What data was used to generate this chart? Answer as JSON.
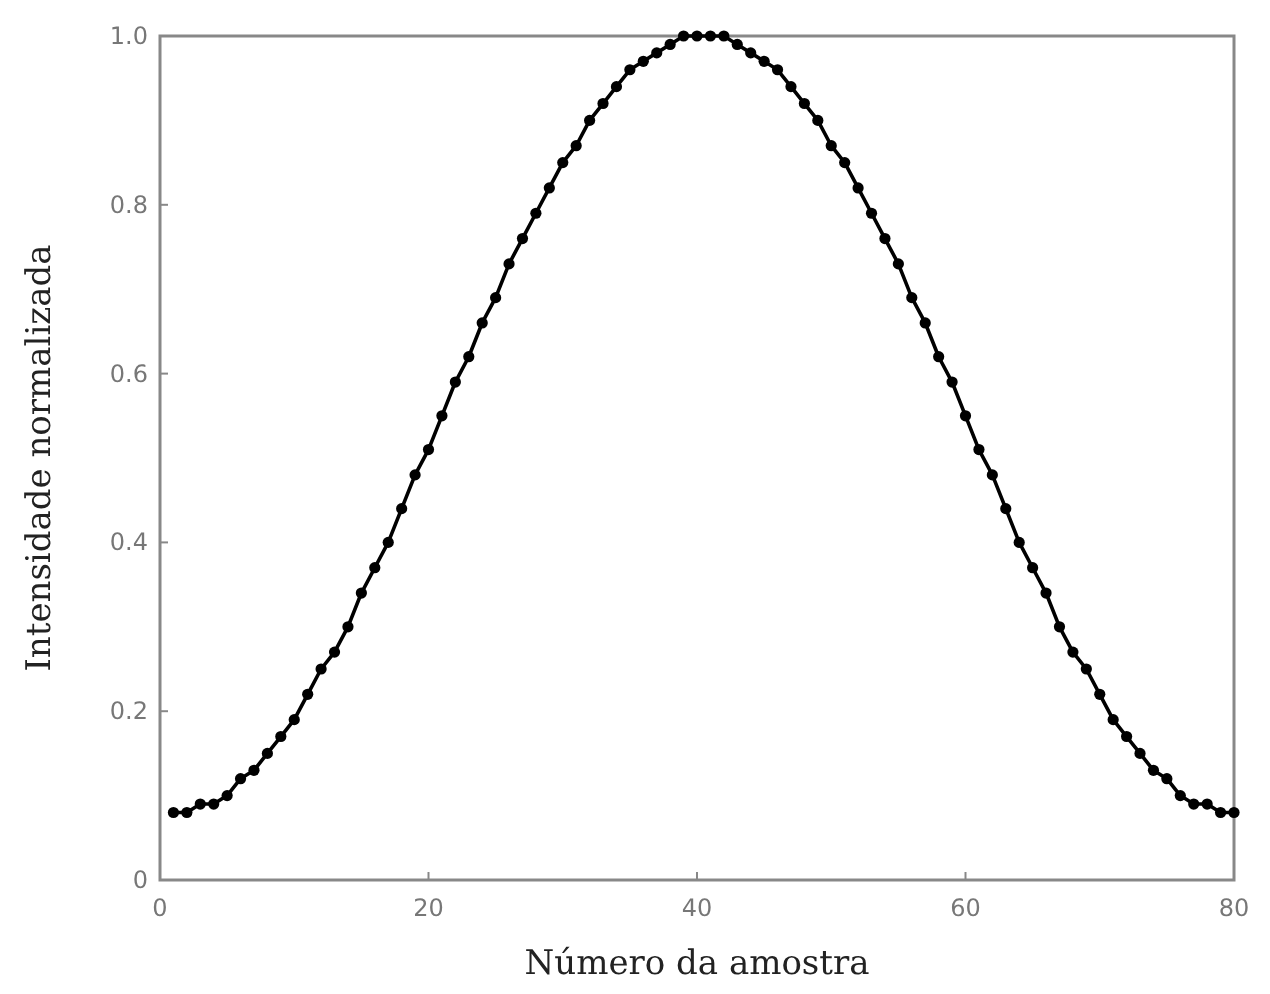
{
  "chart_data": {
    "type": "line",
    "xlabel": "Número da amostra",
    "ylabel": "Intensidade normalizada",
    "x": [
      1,
      2,
      3,
      4,
      5,
      6,
      7,
      8,
      9,
      10,
      11,
      12,
      13,
      14,
      15,
      16,
      17,
      18,
      19,
      20,
      21,
      22,
      23,
      24,
      25,
      26,
      27,
      28,
      29,
      30,
      31,
      32,
      33,
      34,
      35,
      36,
      37,
      38,
      39,
      40,
      41,
      42,
      43,
      44,
      45,
      46,
      47,
      48,
      49,
      50,
      51,
      52,
      53,
      54,
      55,
      56,
      57,
      58,
      59,
      60,
      61,
      62,
      63,
      64,
      65,
      66,
      67,
      68,
      69,
      70,
      71,
      72,
      73,
      74,
      75,
      76,
      77,
      78,
      79,
      80
    ],
    "series": [
      {
        "color": "#000000",
        "values": [
          0.08,
          0.08,
          0.09,
          0.09,
          0.1,
          0.12,
          0.13,
          0.15,
          0.17,
          0.19,
          0.22,
          0.25,
          0.27,
          0.3,
          0.34,
          0.37,
          0.4,
          0.44,
          0.48,
          0.51,
          0.55,
          0.59,
          0.62,
          0.66,
          0.69,
          0.73,
          0.76,
          0.79,
          0.82,
          0.85,
          0.87,
          0.9,
          0.92,
          0.94,
          0.96,
          0.97,
          0.98,
          0.99,
          1.0,
          1.0,
          1.0,
          1.0,
          0.99,
          0.98,
          0.97,
          0.96,
          0.94,
          0.92,
          0.9,
          0.87,
          0.85,
          0.82,
          0.79,
          0.76,
          0.73,
          0.69,
          0.66,
          0.62,
          0.59,
          0.55,
          0.51,
          0.48,
          0.44,
          0.4,
          0.37,
          0.34,
          0.3,
          0.27,
          0.25,
          0.22,
          0.19,
          0.17,
          0.15,
          0.13,
          0.12,
          0.1,
          0.09,
          0.09,
          0.08,
          0.08
        ]
      }
    ],
    "xlim": [
      0,
      80
    ],
    "xticks": [
      0,
      20,
      40,
      60,
      80
    ],
    "ylim": [
      0,
      1
    ],
    "yticks": [
      0,
      0.2,
      0.4,
      0.6,
      0.8,
      {
        "value": 1,
        "label": "1.0"
      }
    ],
    "grid": false,
    "marker": "circle",
    "line_style": "solid"
  }
}
